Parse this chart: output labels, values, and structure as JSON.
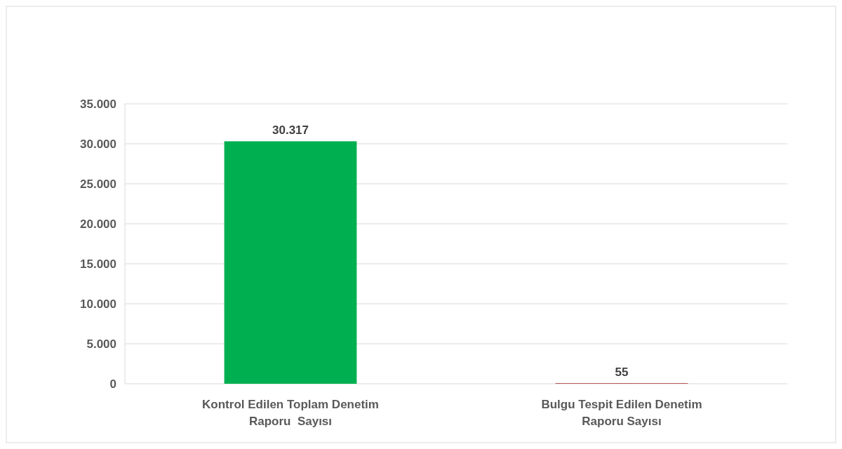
{
  "chart_data": {
    "type": "bar",
    "categories": [
      "Kontrol Edilen Toplam Denetim Raporu  Sayısı",
      "Bulgu Tespit Edilen Denetim Raporu Sayısı"
    ],
    "values": [
      30317,
      55
    ],
    "colors": [
      "#00b050",
      "#990000"
    ],
    "value_labels": [
      "30.317",
      "55"
    ],
    "ylim": [
      0,
      35000
    ],
    "yticks": [
      0,
      {
        "value": 5000,
        "label": "5.000"
      },
      {
        "value": 10000,
        "label": "10.000"
      },
      {
        "value": 15000,
        "label": "15.000"
      },
      {
        "value": 20000,
        "label": "20.000"
      },
      {
        "value": 25000,
        "label": "25.000"
      },
      {
        "value": 30000,
        "label": "30.000"
      },
      {
        "value": 35000,
        "label": "35.000"
      }
    ],
    "grid": true
  }
}
